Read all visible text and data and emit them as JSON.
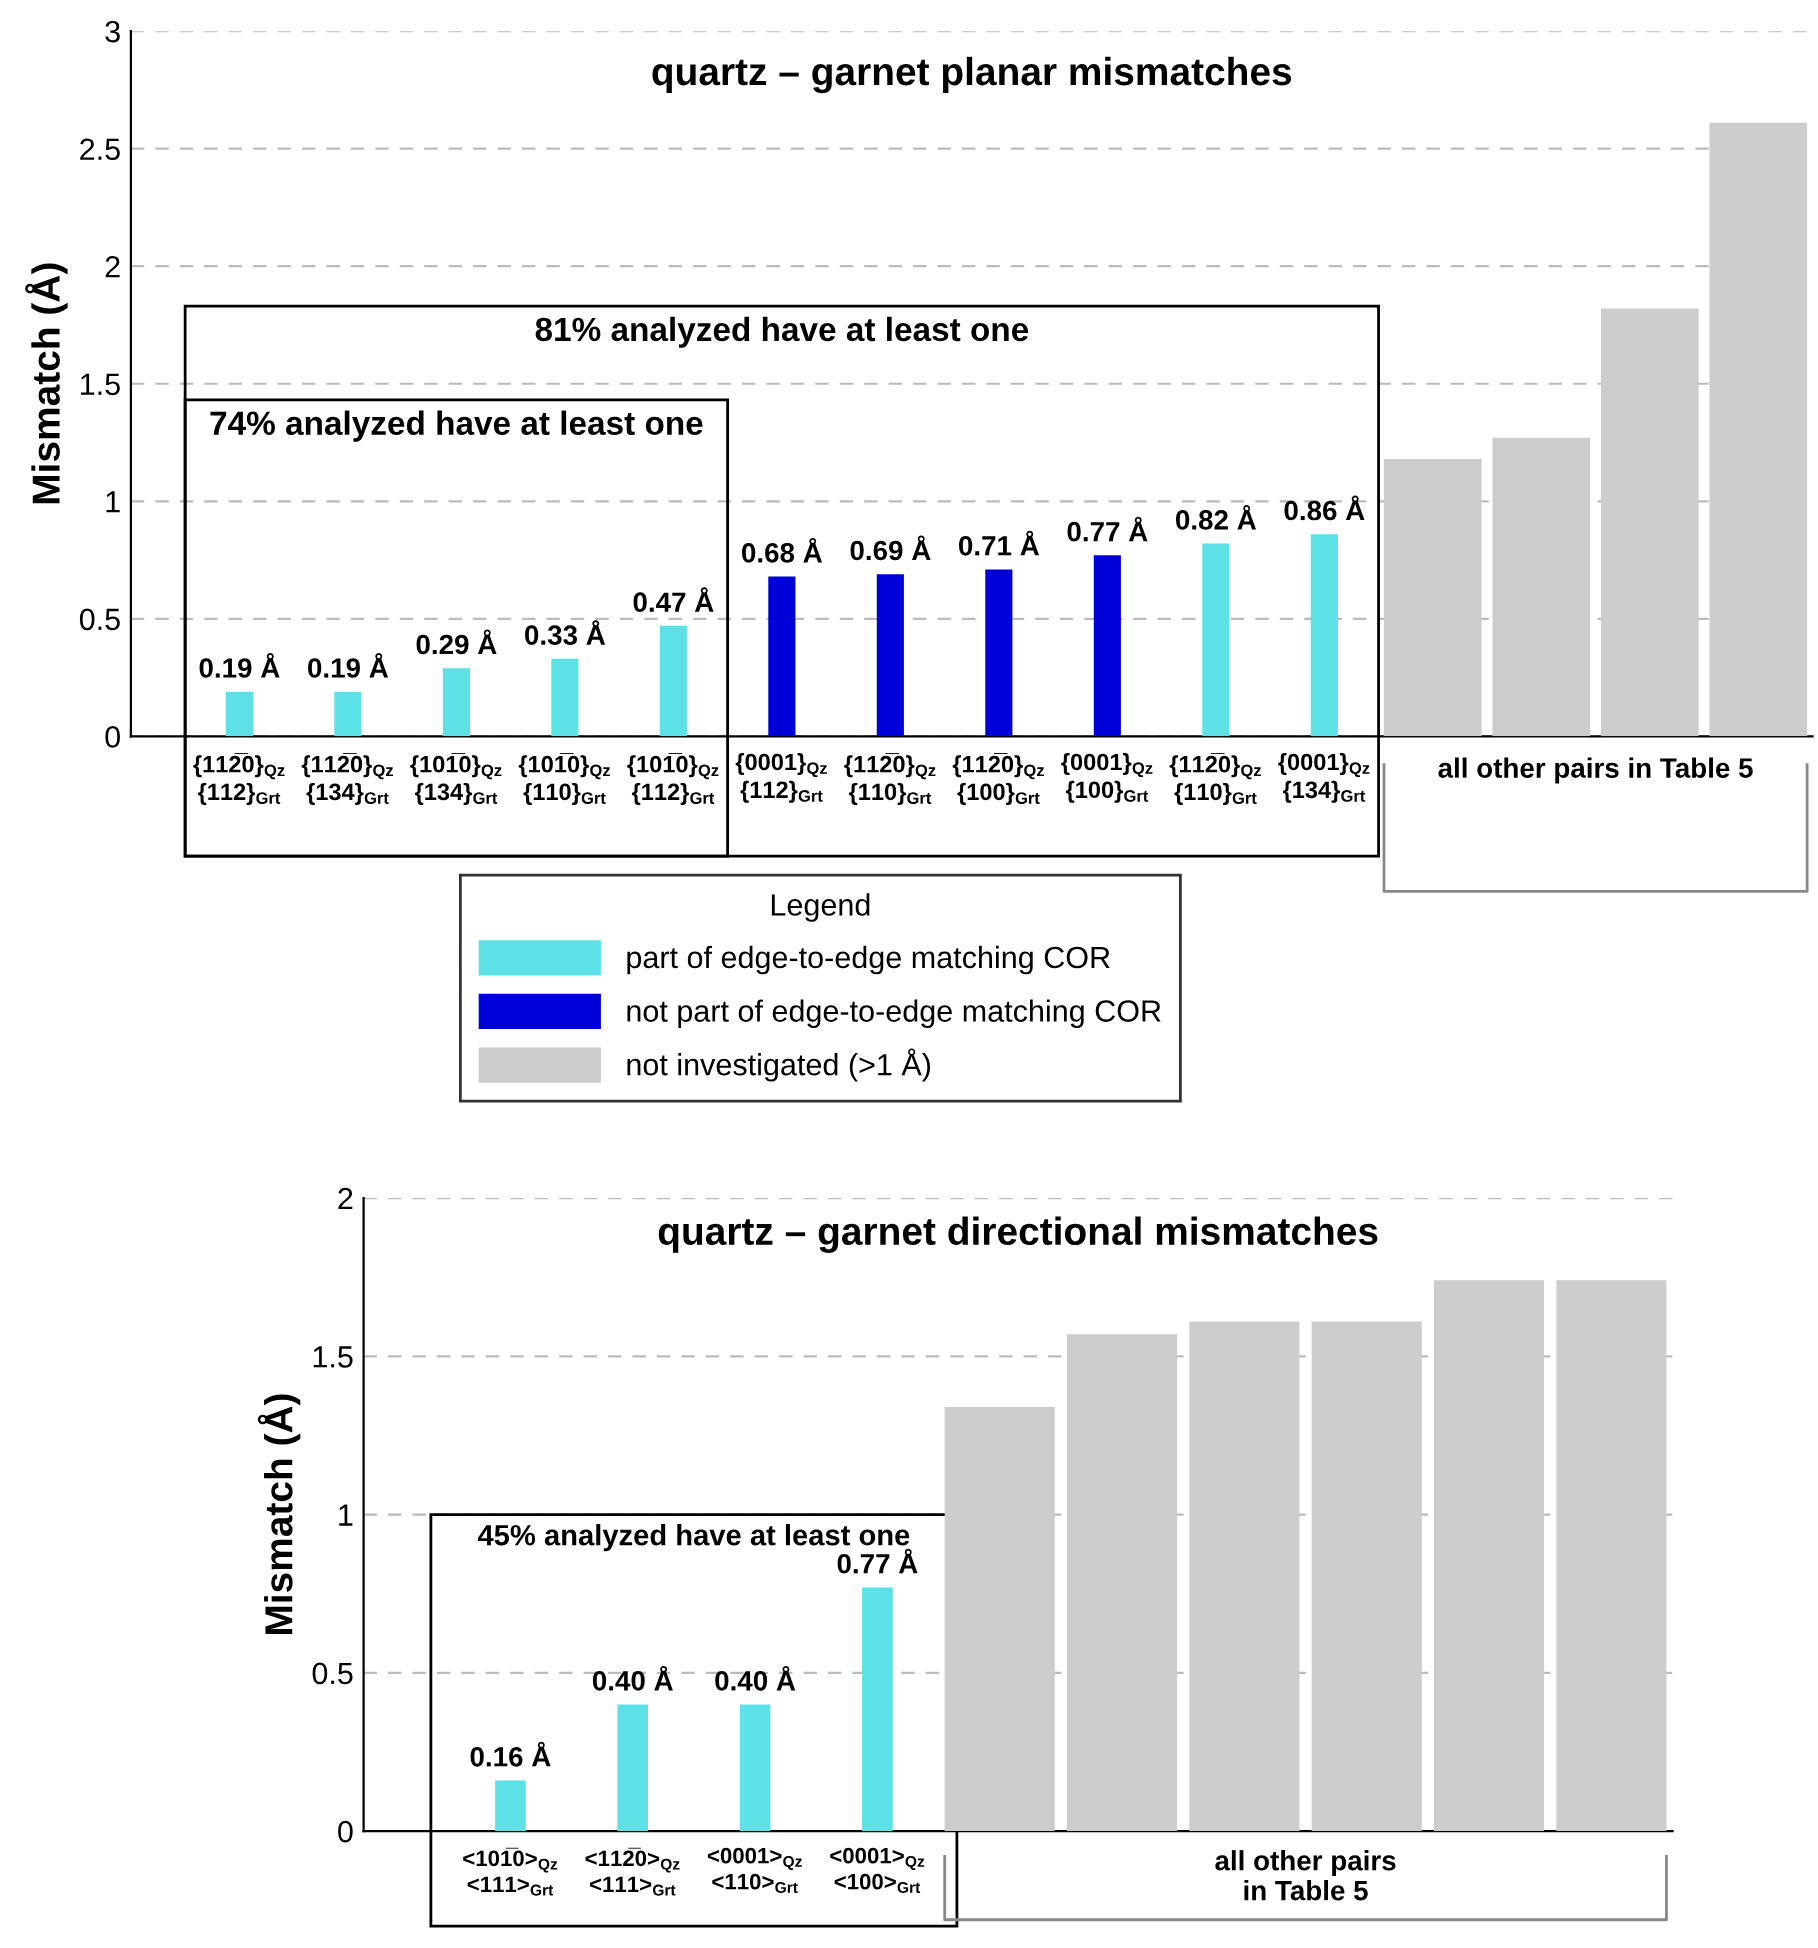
{
  "chart_data": [
    {
      "type": "bar",
      "title": "quartz – garnet planar mismatches",
      "ylabel": "Mismatch (Å)",
      "categories": [
        "{112̅0}$_{Qz}$\n{112}$_{Grt}$",
        "{112̅0}$_{Qz}$\n{134}$_{Grt}$",
        "{101̅0}$_{Qz}$\n{134}$_{Grt}$",
        "{101̅0}$_{Qz}$\n{110}$_{Grt}$",
        "{101̅0}$_{Qz}$\n{112}$_{Grt}$",
        "{0001}$_{Qz}$\n{112}$_{Grt}$",
        "{112̅0}$_{Qz}$\n{110}$_{Grt}$",
        "{112̅0}$_{Qz}$\n{100}$_{Grt}$",
        "{0001}$_{Qz}$\n{100}$_{Grt}$",
        "{112̅0}$_{Qz}$\n{110}$_{Grt}$",
        "{0001}$_{Qz}$\n{134}$_{Grt}$",
        null,
        null,
        null,
        null
      ],
      "series": [
        {
          "name": "part of edge-to-edge matching COR",
          "color": "#5ce1e6",
          "values": [
            0.19,
            0.19,
            0.29,
            0.33,
            0.47,
            null,
            null,
            null,
            null,
            0.82,
            0.86,
            null,
            null,
            null,
            null
          ],
          "value_labels": [
            "0.19 Å",
            "0.19 Å",
            "0.29 Å",
            "0.33 Å",
            "0.47 Å",
            null,
            null,
            null,
            null,
            "0.82 Å",
            "0.86 Å",
            null,
            null,
            null,
            null
          ]
        },
        {
          "name": "not part of edge-to-edge matching COR",
          "color": "#0000d8",
          "values": [
            null,
            null,
            null,
            null,
            null,
            0.68,
            0.69,
            0.71,
            0.77,
            null,
            null,
            null,
            null,
            null,
            null
          ],
          "value_labels": [
            null,
            null,
            null,
            null,
            null,
            "0.68 Å",
            "0.69 Å",
            "0.71 Å",
            "0.77 Å",
            null,
            null,
            null,
            null,
            null,
            null
          ]
        },
        {
          "name": "not investigated (>1 Å)",
          "color": "#cccccc",
          "values": [
            null,
            null,
            null,
            null,
            null,
            null,
            null,
            null,
            null,
            null,
            null,
            1.18,
            1.27,
            1.82,
            2.61
          ]
        }
      ],
      "ylim": [
        0,
        3
      ],
      "yticks": [
        0,
        0.5,
        1,
        1.5,
        2,
        2.5,
        3
      ],
      "grid": "y",
      "legend": "bottom",
      "legend_title": "Legend",
      "annotations": [
        "81% analyzed have at least one",
        "74% analyzed have at least one",
        "all other pairs in Table 5"
      ]
    },
    {
      "type": "bar",
      "title": "quartz – garnet directional mismatches",
      "ylabel": "Mismatch (Å)",
      "categories": [
        "<101̅0>$_{Qz}$\n<111>$_{Grt}$",
        "<112̅0>$_{Qz}$\n<111>$_{Grt}$",
        "<0001>$_{Qz}$\n<110>$_{Grt}$",
        "<0001>$_{Qz}$\n<100>$_{Grt}$",
        null,
        null,
        null,
        null,
        null,
        null
      ],
      "series": [
        {
          "color": "#5ce1e6",
          "values": [
            0.16,
            0.4,
            0.4,
            0.77,
            null,
            null,
            null,
            null,
            null,
            null
          ],
          "value_labels": [
            "0.16 Å",
            "0.40 Å",
            "0.40 Å",
            "0.77 Å",
            null,
            null,
            null,
            null,
            null,
            null
          ]
        },
        {
          "color": "#cccccc",
          "values": [
            null,
            null,
            null,
            null,
            1.34,
            1.57,
            1.61,
            1.61,
            1.74,
            1.74
          ]
        }
      ],
      "ylim": [
        0,
        2
      ],
      "yticks": [
        0,
        0.5,
        1,
        1.5,
        2
      ],
      "grid": "y",
      "annotations": [
        "45% analyzed have at least one",
        "all other pairs\nin Table 5"
      ]
    }
  ]
}
